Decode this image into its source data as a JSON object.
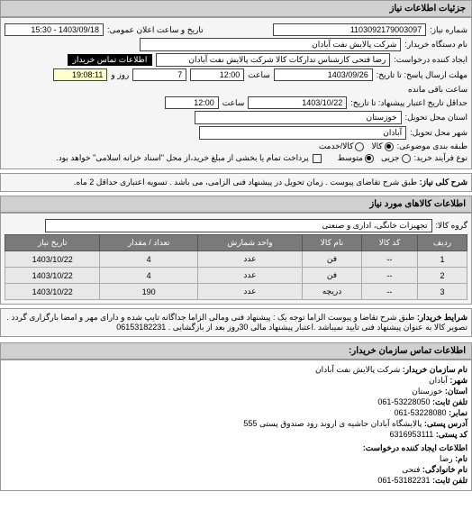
{
  "sections": {
    "details_header": "جزئیات اطلاعات نیاز"
  },
  "form": {
    "request_no_label": "شماره نیاز:",
    "request_no": "1103092179003097",
    "announce_label": "تاریخ و ساعت اعلان عمومی:",
    "announce_value": "1403/09/18 - 15:30",
    "buyer_org_label": "نام دستگاه خریدار:",
    "buyer_org": "شرکت پالایش نفت آبادان",
    "creator_label": "ایجاد کننده درخواست:",
    "creator": "رضا فتحی کارشناس تدارکات کالا   شرکت پالایش نفت آبادان",
    "buyer_contact_btn": "اطلاعات تماس خریدار",
    "deadline_send_label": "مهلت ارسال پاسخ: تا تاریخ:",
    "deadline_send_date": "1403/09/26",
    "time_label": "ساعت",
    "deadline_send_time": "12:00",
    "days_label": "روز و",
    "days_value": "7",
    "remain_time": "19:08:11",
    "remain_label": "ساعت باقی مانده",
    "valid_until_label": "حداقل تاریخ اعتبار پیشنهاد: تا تاریخ:",
    "valid_until_date": "1403/10/22",
    "valid_until_time": "12:00",
    "province_label": "استان محل تحویل:",
    "province": "خوزستان",
    "city_label": "شهر محل تحویل:",
    "city": "آبادان",
    "group_type_label": "طبقه بندی موضوعی:",
    "radio_goods": "کالا",
    "radio_service": "کالا/خدمت",
    "buy_type_label": "نوع فرآیند خرید:",
    "radio_partial": "جزیی",
    "radio_medium": "متوسط",
    "payment_note": "پرداخت تمام یا بخشی از مبلغ خرید،از محل \"اسناد خزانه اسلامی\" خواهد بود.",
    "need_desc_label": "شرح کلی نیاز:",
    "need_desc": "طبق شرح تقاضای پیوست . زمان تحویل در پیشنهاد فنی الزامی، می باشد . تسویه اعتباری حداقل 2 ماه.",
    "goods_header": "اطلاعات کالاهای مورد نیاز",
    "goods_group_label": "گروه کالا:",
    "goods_group": "تجهیزات خانگی، اداری و صنعتی"
  },
  "table": {
    "headers": [
      "ردیف",
      "کد کالا",
      "نام کالا",
      "واحد شمارش",
      "تعداد / مقدار",
      "تاریخ نیاز"
    ],
    "rows": [
      [
        "1",
        "--",
        "فن",
        "عدد",
        "4",
        "1403/10/22"
      ],
      [
        "2",
        "--",
        "فن",
        "عدد",
        "4",
        "1403/10/22"
      ],
      [
        "3",
        "--",
        "دریچه",
        "عدد",
        "190",
        "1403/10/22"
      ]
    ]
  },
  "description": {
    "label": "شرایط خریدار:",
    "text": "طبق شرح تقاضا و پیوست الزاما توجه یک : پیشنهاد فنی ومالی الزاما جداگانه تایپ شده و دارای مهر و امضا بارگزاری گردد . تصویر کالا به عنوان پیشنهاد فنی تایید نمیباشد .اعتبار پیشنهاد مالی 30روز بعد از بازگشایی . 06153182231"
  },
  "contact": {
    "header": "اطلاعات تماس سازمان خریدار:",
    "org_label": "نام سازمان خریدار:",
    "org": "شرکت پالایش نفت آبادان",
    "city_label": "شهر:",
    "city": "آبادان",
    "province_label": "استان:",
    "province": "خوزستان",
    "phone_label": "تلفن ثابت:",
    "phone": "53228050-061",
    "fax_label": "نمابر:",
    "fax": "53228080-061",
    "address_label": "آدرس پستی:",
    "address": "پالایشگاه آبادان حاشیه ی اروند رود صندوق پستی 555",
    "postcode_label": "کد پستی:",
    "postcode": "6316953111",
    "creator_header": "اطلاعات ایجاد کننده درخواست:",
    "name_label": "نام:",
    "name": "رضا",
    "lname_label": "نام خانوادگی:",
    "lname": "فتحی",
    "cphone_label": "تلفن ثابت:",
    "cphone": "53182231-061"
  },
  "colors": {
    "section_bg": "#d0d0d0",
    "form_bg": "#f5f5f5",
    "th_bg": "#7a7a7a",
    "td_bg": "#e8e8e8"
  }
}
